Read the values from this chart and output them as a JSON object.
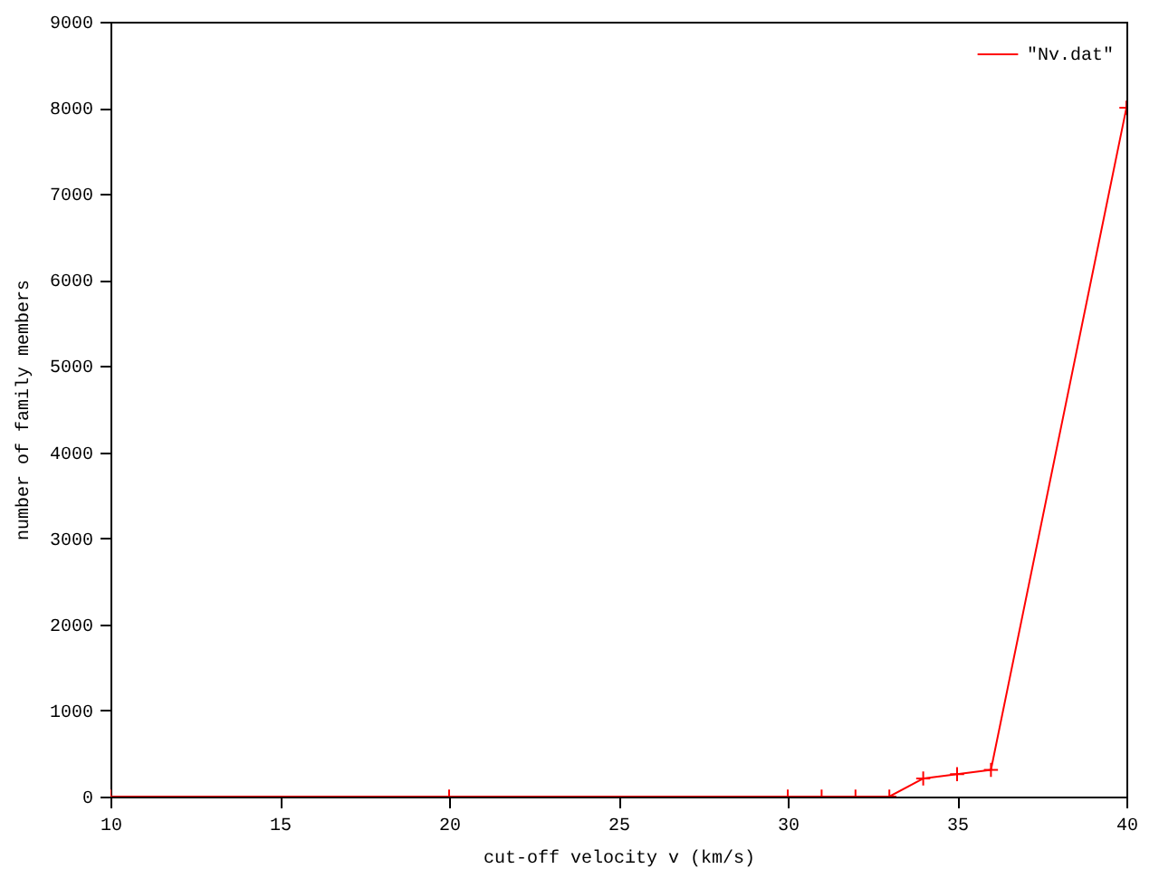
{
  "chart_data": {
    "type": "line",
    "xlabel": "cut-off velocity v (km/s)",
    "ylabel": "number of family members",
    "x": [
      10,
      20,
      30,
      31,
      32,
      33,
      34,
      35,
      36,
      40
    ],
    "series": [
      {
        "name": "\"Nv.dat\"",
        "color": "#ff0000",
        "values": [
          0,
          0,
          0,
          0,
          0,
          0,
          210,
          260,
          310,
          8000
        ]
      }
    ],
    "xlim": [
      10,
      40
    ],
    "xticks": [
      10,
      15,
      20,
      25,
      30,
      35,
      40
    ],
    "ylim": [
      0,
      9000
    ],
    "yticks": [
      0,
      1000,
      2000,
      3000,
      4000,
      5000,
      6000,
      7000,
      8000,
      9000
    ],
    "grid": false,
    "legend": "top right",
    "marker": "cross",
    "line_style": "solid"
  }
}
